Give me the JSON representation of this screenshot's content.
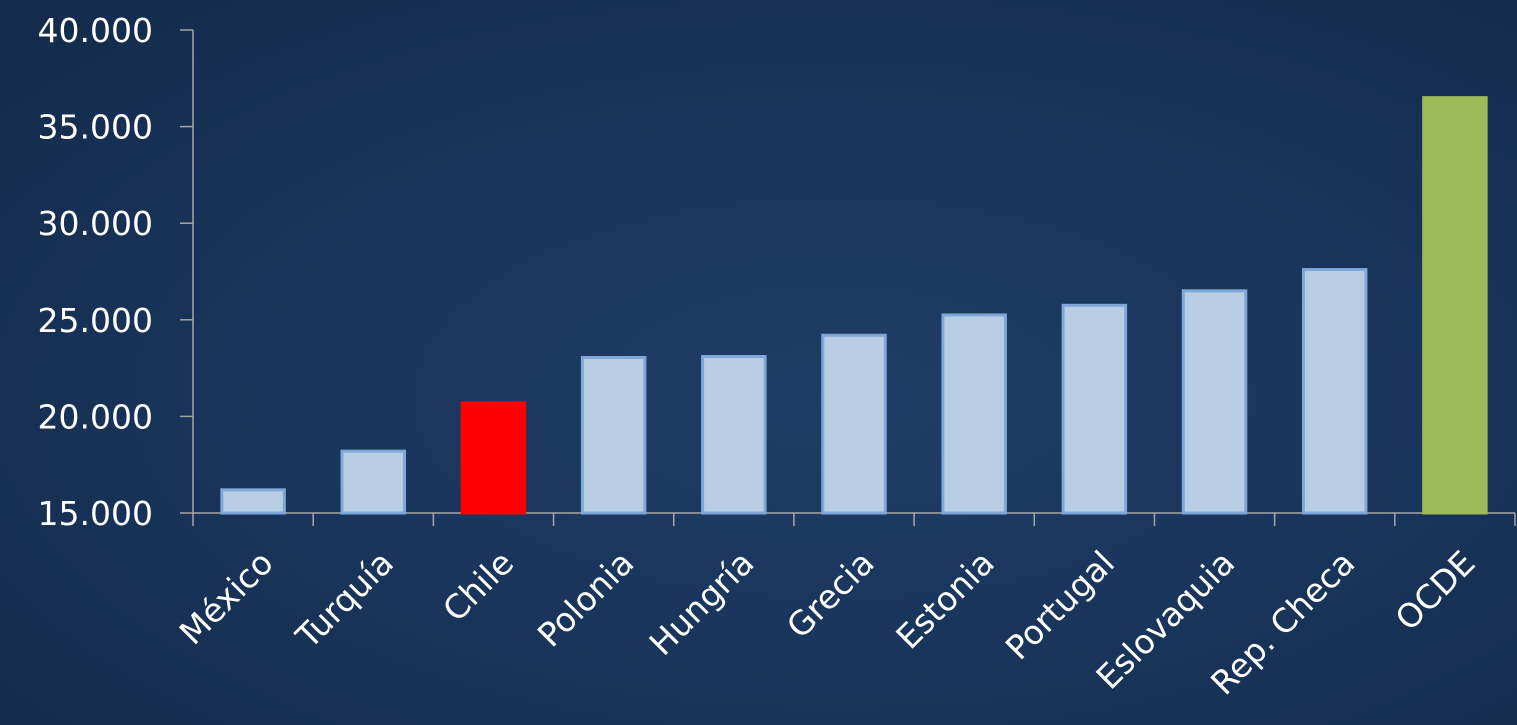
{
  "chart_data": {
    "type": "bar",
    "title": "",
    "xlabel": "",
    "ylabel": "",
    "categories": [
      "México",
      "Turquía",
      "Chile",
      "Polonia",
      "Hungría",
      "Grecia",
      "Estonia",
      "Portugal",
      "Eslovaquia",
      "Rep. Checa",
      "OCDE"
    ],
    "values": [
      16200,
      18200,
      20700,
      23050,
      23100,
      24200,
      25250,
      25750,
      26500,
      27600,
      36500
    ],
    "colors": [
      "#b9cde5",
      "#b9cde5",
      "#ff0000",
      "#b9cde5",
      "#b9cde5",
      "#b9cde5",
      "#b9cde5",
      "#b9cde5",
      "#b9cde5",
      "#b9cde5",
      "#9bbb59"
    ],
    "border_colors": [
      "#7fa8d8",
      "#7fa8d8",
      "#ff0000",
      "#7fa8d8",
      "#7fa8d8",
      "#7fa8d8",
      "#7fa8d8",
      "#7fa8d8",
      "#7fa8d8",
      "#7fa8d8",
      "#9bbb59"
    ],
    "ylim": [
      15000,
      40000
    ],
    "y_ticks": [
      15000,
      20000,
      25000,
      30000,
      35000,
      40000
    ],
    "y_tick_labels": [
      "15.000",
      "20.000",
      "25.000",
      "30.000",
      "35.000",
      "40.000"
    ],
    "grid": false,
    "legend": "none"
  }
}
